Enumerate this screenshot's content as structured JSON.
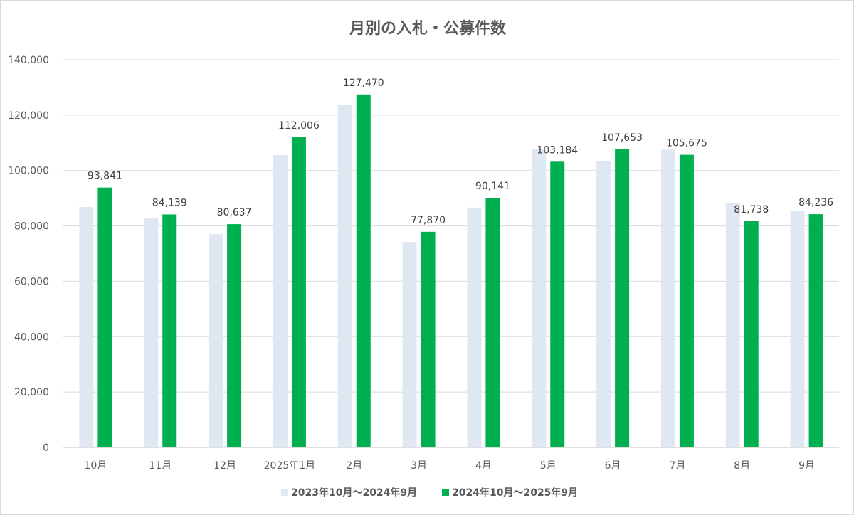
{
  "chart_data": {
    "type": "bar",
    "title": "月別の入札・公募件数",
    "xlabel": "",
    "ylabel": "",
    "ylim": [
      0,
      140000
    ],
    "yticks": [
      0,
      20000,
      40000,
      60000,
      80000,
      100000,
      120000,
      140000
    ],
    "ytick_labels": [
      "0",
      "20,000",
      "40,000",
      "60,000",
      "80,000",
      "100,000",
      "120,000",
      "140,000"
    ],
    "grid": true,
    "legend_position": "bottom",
    "categories": [
      "10月",
      "11月",
      "12月",
      "2025年1月",
      "2月",
      "3月",
      "4月",
      "5月",
      "6月",
      "7月",
      "8月",
      "9月"
    ],
    "series": [
      {
        "name": "2023年10月～2024年9月",
        "color": "#dfe7f2",
        "labeled": false,
        "values": [
          86800,
          82700,
          77100,
          105600,
          123800,
          74200,
          86600,
          107600,
          103500,
          107600,
          88400,
          85300
        ]
      },
      {
        "name": "2024年10月～2025年9月",
        "color": "#00b050",
        "labeled": true,
        "values": [
          93841,
          84139,
          80637,
          112006,
          127470,
          77870,
          90141,
          103184,
          107653,
          105675,
          81738,
          84236
        ],
        "labels": [
          "93,841",
          "84,139",
          "80,637",
          "112,006",
          "127,470",
          "77,870",
          "90,141",
          "103,184",
          "107,653",
          "105,675",
          "81,738",
          "84,236"
        ]
      }
    ]
  }
}
